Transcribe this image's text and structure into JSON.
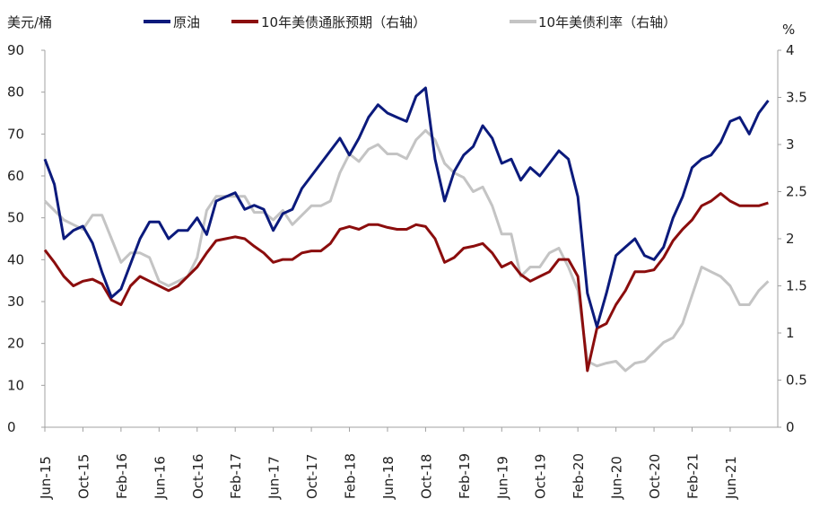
{
  "chart_data": {
    "type": "line",
    "left_axis": {
      "unit_label": "美元/桶",
      "ticks": [
        "0",
        "10",
        "20",
        "30",
        "40",
        "50",
        "60",
        "70",
        "80",
        "90"
      ],
      "ylim": [
        0,
        90
      ]
    },
    "right_axis": {
      "unit_label": "%",
      "ticks": [
        "0",
        "0.5",
        "1",
        "1.5",
        "2",
        "2.5",
        "3",
        "3.5",
        "4"
      ],
      "ylim": [
        0,
        4
      ]
    },
    "x_ticks": [
      "Jun-15",
      "Oct-15",
      "Feb-16",
      "Jun-16",
      "Oct-16",
      "Feb-17",
      "Jun-17",
      "Oct-17",
      "Feb-18",
      "Jun-18",
      "Oct-18",
      "Feb-19",
      "Jun-19",
      "Oct-19",
      "Feb-20",
      "Jun-20",
      "Oct-20",
      "Feb-21",
      "Jun-21"
    ],
    "x_range": [
      "2015-06",
      "2021-11"
    ],
    "legend_position": "top",
    "series": [
      {
        "name": "原油",
        "axis": "left",
        "color": "#0b1a7c",
        "points": [
          [
            "2015-06",
            64
          ],
          [
            "2015-07",
            58
          ],
          [
            "2015-08",
            45
          ],
          [
            "2015-09",
            47
          ],
          [
            "2015-10",
            48
          ],
          [
            "2015-11",
            44
          ],
          [
            "2015-12",
            37
          ],
          [
            "2016-01",
            31
          ],
          [
            "2016-02",
            33
          ],
          [
            "2016-03",
            39
          ],
          [
            "2016-04",
            45
          ],
          [
            "2016-05",
            49
          ],
          [
            "2016-06",
            49
          ],
          [
            "2016-07",
            45
          ],
          [
            "2016-08",
            47
          ],
          [
            "2016-09",
            47
          ],
          [
            "2016-10",
            50
          ],
          [
            "2016-11",
            46
          ],
          [
            "2016-12",
            54
          ],
          [
            "2017-01",
            55
          ],
          [
            "2017-02",
            56
          ],
          [
            "2017-03",
            52
          ],
          [
            "2017-04",
            53
          ],
          [
            "2017-05",
            52
          ],
          [
            "2017-06",
            47
          ],
          [
            "2017-07",
            51
          ],
          [
            "2017-08",
            52
          ],
          [
            "2017-09",
            57
          ],
          [
            "2017-10",
            60
          ],
          [
            "2017-11",
            63
          ],
          [
            "2017-12",
            66
          ],
          [
            "2018-01",
            69
          ],
          [
            "2018-02",
            65
          ],
          [
            "2018-03",
            69
          ],
          [
            "2018-04",
            74
          ],
          [
            "2018-05",
            77
          ],
          [
            "2018-06",
            75
          ],
          [
            "2018-07",
            74
          ],
          [
            "2018-08",
            73
          ],
          [
            "2018-09",
            79
          ],
          [
            "2018-10",
            81
          ],
          [
            "2018-11",
            64
          ],
          [
            "2018-12",
            54
          ],
          [
            "2019-01",
            61
          ],
          [
            "2019-02",
            65
          ],
          [
            "2019-03",
            67
          ],
          [
            "2019-04",
            72
          ],
          [
            "2019-05",
            69
          ],
          [
            "2019-06",
            63
          ],
          [
            "2019-07",
            64
          ],
          [
            "2019-08",
            59
          ],
          [
            "2019-09",
            62
          ],
          [
            "2019-10",
            60
          ],
          [
            "2019-11",
            63
          ],
          [
            "2019-12",
            66
          ],
          [
            "2020-01",
            64
          ],
          [
            "2020-02",
            55
          ],
          [
            "2020-03",
            32
          ],
          [
            "2020-04",
            24
          ],
          [
            "2020-05",
            32
          ],
          [
            "2020-06",
            41
          ],
          [
            "2020-07",
            43
          ],
          [
            "2020-08",
            45
          ],
          [
            "2020-09",
            41
          ],
          [
            "2020-10",
            40
          ],
          [
            "2020-11",
            43
          ],
          [
            "2020-12",
            50
          ],
          [
            "2021-01",
            55
          ],
          [
            "2021-02",
            62
          ],
          [
            "2021-03",
            64
          ],
          [
            "2021-04",
            65
          ],
          [
            "2021-05",
            68
          ],
          [
            "2021-06",
            73
          ],
          [
            "2021-07",
            74
          ],
          [
            "2021-08",
            70
          ],
          [
            "2021-09",
            75
          ],
          [
            "2021-10",
            78
          ]
        ]
      },
      {
        "name": "10年美债通胀预期（右轴）",
        "axis": "right",
        "color": "#8b0d0d",
        "points": [
          [
            "2015-06",
            1.88
          ],
          [
            "2015-07",
            1.75
          ],
          [
            "2015-08",
            1.6
          ],
          [
            "2015-09",
            1.5
          ],
          [
            "2015-10",
            1.55
          ],
          [
            "2015-11",
            1.57
          ],
          [
            "2015-12",
            1.52
          ],
          [
            "2016-01",
            1.35
          ],
          [
            "2016-02",
            1.3
          ],
          [
            "2016-03",
            1.5
          ],
          [
            "2016-04",
            1.6
          ],
          [
            "2016-05",
            1.55
          ],
          [
            "2016-06",
            1.5
          ],
          [
            "2016-07",
            1.45
          ],
          [
            "2016-08",
            1.5
          ],
          [
            "2016-09",
            1.6
          ],
          [
            "2016-10",
            1.7
          ],
          [
            "2016-11",
            1.85
          ],
          [
            "2016-12",
            1.98
          ],
          [
            "2017-01",
            2.0
          ],
          [
            "2017-02",
            2.02
          ],
          [
            "2017-03",
            2.0
          ],
          [
            "2017-04",
            1.92
          ],
          [
            "2017-05",
            1.85
          ],
          [
            "2017-06",
            1.75
          ],
          [
            "2017-07",
            1.78
          ],
          [
            "2017-08",
            1.78
          ],
          [
            "2017-09",
            1.85
          ],
          [
            "2017-10",
            1.87
          ],
          [
            "2017-11",
            1.87
          ],
          [
            "2017-12",
            1.95
          ],
          [
            "2018-01",
            2.1
          ],
          [
            "2018-02",
            2.13
          ],
          [
            "2018-03",
            2.1
          ],
          [
            "2018-04",
            2.15
          ],
          [
            "2018-05",
            2.15
          ],
          [
            "2018-06",
            2.12
          ],
          [
            "2018-07",
            2.1
          ],
          [
            "2018-08",
            2.1
          ],
          [
            "2018-09",
            2.15
          ],
          [
            "2018-10",
            2.13
          ],
          [
            "2018-11",
            2.0
          ],
          [
            "2018-12",
            1.75
          ],
          [
            "2019-01",
            1.8
          ],
          [
            "2019-02",
            1.9
          ],
          [
            "2019-03",
            1.92
          ],
          [
            "2019-04",
            1.95
          ],
          [
            "2019-05",
            1.85
          ],
          [
            "2019-06",
            1.7
          ],
          [
            "2019-07",
            1.75
          ],
          [
            "2019-08",
            1.62
          ],
          [
            "2019-09",
            1.55
          ],
          [
            "2019-10",
            1.6
          ],
          [
            "2019-11",
            1.65
          ],
          [
            "2019-12",
            1.78
          ],
          [
            "2020-01",
            1.78
          ],
          [
            "2020-02",
            1.6
          ],
          [
            "2020-03",
            0.6
          ],
          [
            "2020-04",
            1.05
          ],
          [
            "2020-05",
            1.1
          ],
          [
            "2020-06",
            1.3
          ],
          [
            "2020-07",
            1.45
          ],
          [
            "2020-08",
            1.65
          ],
          [
            "2020-09",
            1.65
          ],
          [
            "2020-10",
            1.67
          ],
          [
            "2020-11",
            1.8
          ],
          [
            "2020-12",
            1.98
          ],
          [
            "2021-01",
            2.1
          ],
          [
            "2021-02",
            2.2
          ],
          [
            "2021-03",
            2.35
          ],
          [
            "2021-04",
            2.4
          ],
          [
            "2021-05",
            2.48
          ],
          [
            "2021-06",
            2.4
          ],
          [
            "2021-07",
            2.35
          ],
          [
            "2021-08",
            2.35
          ],
          [
            "2021-09",
            2.35
          ],
          [
            "2021-10",
            2.38
          ]
        ]
      },
      {
        "name": "10年美债利率（右轴）",
        "axis": "right",
        "color": "#c4c4c4",
        "points": [
          [
            "2015-06",
            2.4
          ],
          [
            "2015-07",
            2.3
          ],
          [
            "2015-08",
            2.2
          ],
          [
            "2015-09",
            2.15
          ],
          [
            "2015-10",
            2.1
          ],
          [
            "2015-11",
            2.25
          ],
          [
            "2015-12",
            2.25
          ],
          [
            "2016-01",
            2.0
          ],
          [
            "2016-02",
            1.75
          ],
          [
            "2016-03",
            1.85
          ],
          [
            "2016-04",
            1.85
          ],
          [
            "2016-05",
            1.8
          ],
          [
            "2016-06",
            1.55
          ],
          [
            "2016-07",
            1.5
          ],
          [
            "2016-08",
            1.55
          ],
          [
            "2016-09",
            1.6
          ],
          [
            "2016-10",
            1.8
          ],
          [
            "2016-11",
            2.3
          ],
          [
            "2016-12",
            2.45
          ],
          [
            "2017-01",
            2.45
          ],
          [
            "2017-02",
            2.45
          ],
          [
            "2017-03",
            2.45
          ],
          [
            "2017-04",
            2.28
          ],
          [
            "2017-05",
            2.28
          ],
          [
            "2017-06",
            2.2
          ],
          [
            "2017-07",
            2.3
          ],
          [
            "2017-08",
            2.15
          ],
          [
            "2017-09",
            2.25
          ],
          [
            "2017-10",
            2.35
          ],
          [
            "2017-11",
            2.35
          ],
          [
            "2017-12",
            2.4
          ],
          [
            "2018-01",
            2.7
          ],
          [
            "2018-02",
            2.9
          ],
          [
            "2018-03",
            2.82
          ],
          [
            "2018-04",
            2.95
          ],
          [
            "2018-05",
            3.0
          ],
          [
            "2018-06",
            2.9
          ],
          [
            "2018-07",
            2.9
          ],
          [
            "2018-08",
            2.85
          ],
          [
            "2018-09",
            3.05
          ],
          [
            "2018-10",
            3.15
          ],
          [
            "2018-11",
            3.05
          ],
          [
            "2018-12",
            2.8
          ],
          [
            "2019-01",
            2.7
          ],
          [
            "2019-02",
            2.65
          ],
          [
            "2019-03",
            2.5
          ],
          [
            "2019-04",
            2.55
          ],
          [
            "2019-05",
            2.35
          ],
          [
            "2019-06",
            2.05
          ],
          [
            "2019-07",
            2.05
          ],
          [
            "2019-08",
            1.6
          ],
          [
            "2019-09",
            1.7
          ],
          [
            "2019-10",
            1.7
          ],
          [
            "2019-11",
            1.85
          ],
          [
            "2019-12",
            1.9
          ],
          [
            "2020-01",
            1.7
          ],
          [
            "2020-02",
            1.45
          ],
          [
            "2020-03",
            0.7
          ],
          [
            "2020-04",
            0.65
          ],
          [
            "2020-05",
            0.68
          ],
          [
            "2020-06",
            0.7
          ],
          [
            "2020-07",
            0.6
          ],
          [
            "2020-08",
            0.68
          ],
          [
            "2020-09",
            0.7
          ],
          [
            "2020-10",
            0.8
          ],
          [
            "2020-11",
            0.9
          ],
          [
            "2020-12",
            0.95
          ],
          [
            "2021-01",
            1.1
          ],
          [
            "2021-02",
            1.4
          ],
          [
            "2021-03",
            1.7
          ],
          [
            "2021-04",
            1.65
          ],
          [
            "2021-05",
            1.6
          ],
          [
            "2021-06",
            1.5
          ],
          [
            "2021-07",
            1.3
          ],
          [
            "2021-08",
            1.3
          ],
          [
            "2021-09",
            1.45
          ],
          [
            "2021-10",
            1.55
          ]
        ]
      }
    ]
  }
}
